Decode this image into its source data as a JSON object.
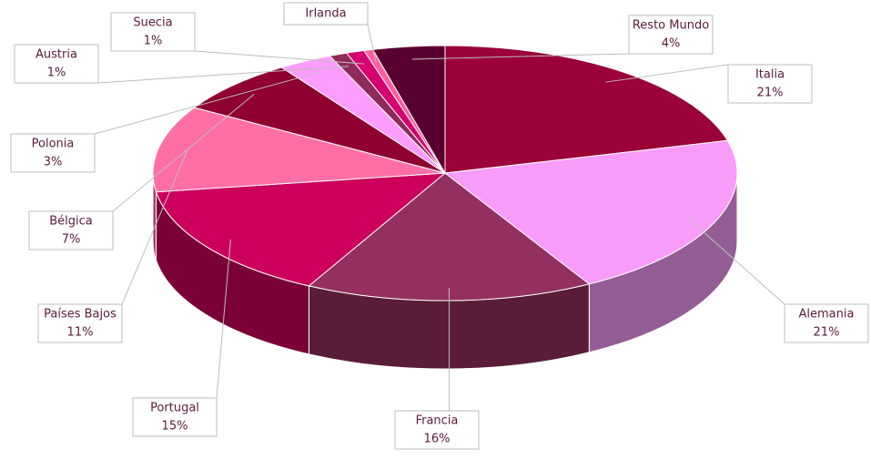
{
  "chart_data": {
    "type": "pie",
    "three_d": true,
    "categories": [
      "Italia",
      "Alemania",
      "Francia",
      "Portugal",
      "Países Bajos",
      "Bélgica",
      "Polonia",
      "Austria",
      "Suecia",
      "Irlanda",
      "Resto Mundo"
    ],
    "values": [
      21,
      21,
      16,
      15,
      11,
      7,
      3,
      1,
      1,
      0.5,
      4
    ],
    "value_labels": [
      "21%",
      "21%",
      "16%",
      "15%",
      "11%",
      "7%",
      "3%",
      "1%",
      "1%",
      null,
      "4%"
    ],
    "colors": [
      "#9b0038",
      "#f99bf9",
      "#943060",
      "#cc005c",
      "#ff6fa6",
      "#8f0030",
      "#ff9cff",
      "#8f2a5a",
      "#d6006e",
      "#ff5fa0",
      "#5a0030"
    ]
  }
}
